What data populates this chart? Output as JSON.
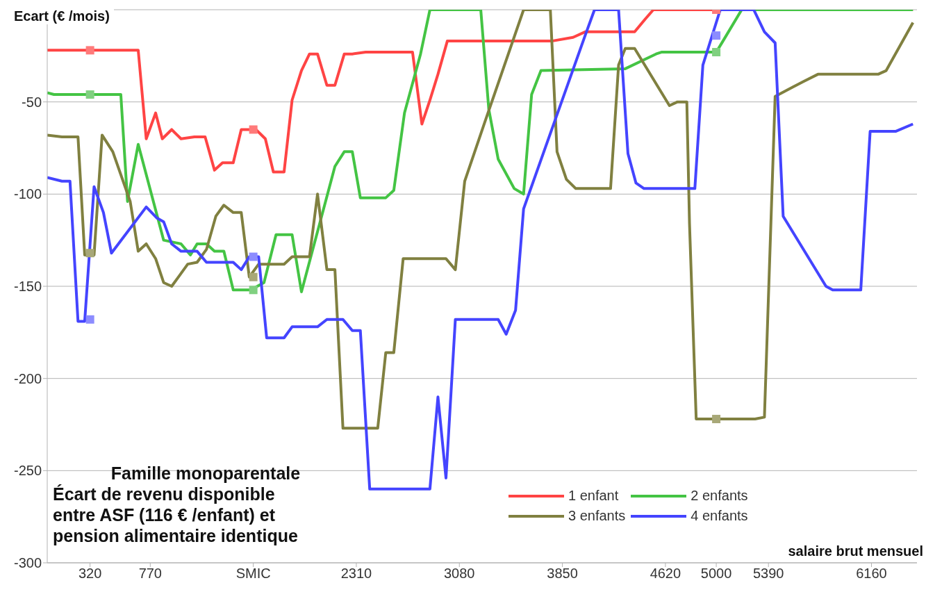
{
  "chart_data": {
    "type": "line",
    "title": "Famille monoparentale\nÉcart de revenu disponible\nentre ASF (116 € /enfant) et\npension alimentaire identique",
    "xlabel": "salaire brut mensuel",
    "ylabel": "Ecart (€ /mois)",
    "xlim": [
      0,
      6500
    ],
    "xticks": [
      320,
      770,
      {
        "value": 1540,
        "label": "SMIC"
      },
      2310,
      3080,
      3850,
      4620,
      5000,
      5390,
      6160
    ],
    "ylim": [
      -300,
      0
    ],
    "yticks": [
      -300,
      -250,
      -200,
      -150,
      -100,
      -50,
      {
        "value": 0,
        "label": null
      }
    ],
    "grid": "y",
    "legend": "bottom right",
    "marker": "none",
    "line_style": "solid",
    "series": [
      {
        "name": "1 enfant",
        "color": "#ff4444",
        "x": [
          0,
          680,
          740,
          810,
          860,
          930,
          1000,
          1100,
          1180,
          1250,
          1310,
          1390,
          1450,
          1560,
          1630,
          1690,
          1770,
          1830,
          1900,
          1960,
          2020,
          2090,
          2150,
          2220,
          2280,
          2380,
          2730,
          2800,
          2860,
          2920,
          2990,
          3770,
          3930,
          4020,
          4390,
          4470,
          4530,
          6470
        ],
        "values": [
          -22,
          -22,
          -70,
          -56,
          -70,
          -65,
          -70,
          -69,
          -69,
          -87,
          -83,
          -83,
          -65,
          -65,
          -70,
          -88,
          -88,
          -49,
          -33,
          -24,
          -24,
          -41,
          -41,
          -24,
          -24,
          -23,
          -23,
          -62,
          -49,
          -35,
          -17,
          -17,
          -15,
          -12,
          -12,
          -5,
          0,
          0
        ]
      },
      {
        "name": "2 enfants",
        "color": "#44c444",
        "x": [
          0,
          50,
          550,
          600,
          680,
          870,
          1000,
          1070,
          1120,
          1190,
          1250,
          1320,
          1390,
          1520,
          1620,
          1710,
          1830,
          1900,
          2150,
          2220,
          2280,
          2340,
          2530,
          2590,
          2670,
          2790,
          2860,
          3240,
          3300,
          3370,
          3490,
          3560,
          3620,
          3690,
          4320,
          4550,
          4590,
          5000,
          5050,
          5190,
          6470
        ],
        "values": [
          -45,
          -46,
          -46,
          -104,
          -73,
          -125,
          -127,
          -133,
          -127,
          -127,
          -131,
          -131,
          -152,
          -152,
          -148,
          -122,
          -122,
          -153,
          -85,
          -77,
          -77,
          -102,
          -102,
          -98,
          -56,
          -24,
          0,
          0,
          -54,
          -81,
          -97,
          -100,
          -46,
          -33,
          -32,
          -24,
          -23,
          -23,
          -17,
          0,
          0
        ]
      },
      {
        "name": "3 enfants",
        "color": "#808040",
        "x": [
          0,
          110,
          230,
          280,
          350,
          410,
          490,
          620,
          680,
          740,
          810,
          870,
          930,
          1050,
          1120,
          1190,
          1260,
          1320,
          1390,
          1450,
          1510,
          1580,
          1770,
          1830,
          1960,
          2020,
          2090,
          2150,
          2210,
          2470,
          2530,
          2590,
          2660,
          2980,
          3050,
          3120,
          3270,
          3560,
          3760,
          3810,
          3880,
          3950,
          4210,
          4270,
          4320,
          4390,
          4650,
          4710,
          4780,
          4800,
          4850,
          5290,
          5360,
          5440,
          5570,
          5650,
          5760,
          6210,
          6270,
          6470
        ],
        "values": [
          -68,
          -69,
          -69,
          -133,
          -133,
          -68,
          -77,
          -104,
          -131,
          -127,
          -135,
          -148,
          -150,
          -138,
          -137,
          -130,
          -112,
          -106,
          -110,
          -110,
          -145,
          -138,
          -138,
          -134,
          -134,
          -100,
          -141,
          -141,
          -227,
          -227,
          -186,
          -186,
          -135,
          -135,
          -141,
          -93,
          -61,
          0,
          0,
          -77,
          -92,
          -97,
          -97,
          -30,
          -21,
          -21,
          -52,
          -50,
          -50,
          -116,
          -222,
          -222,
          -221,
          -47,
          -42,
          -39,
          -35,
          -35,
          -33,
          -7
        ]
      },
      {
        "name": "4 enfants",
        "color": "#4444ff",
        "x": [
          0,
          110,
          170,
          230,
          280,
          350,
          420,
          480,
          740,
          820,
          870,
          930,
          1000,
          1120,
          1190,
          1390,
          1450,
          1510,
          1580,
          1640,
          1770,
          1830,
          2020,
          2090,
          2210,
          2280,
          2340,
          2410,
          2860,
          2920,
          2980,
          3050,
          3370,
          3430,
          3500,
          3560,
          4020,
          4090,
          4270,
          4340,
          4400,
          4460,
          4840,
          4900,
          5030,
          5280,
          5360,
          5440,
          5500,
          5820,
          5870,
          6080,
          6150,
          6340,
          6470
        ],
        "values": [
          -91,
          -93,
          -93,
          -169,
          -169,
          -96,
          -110,
          -132,
          -107,
          -113,
          -115,
          -127,
          -131,
          -131,
          -137,
          -137,
          -141,
          -134,
          -134,
          -178,
          -178,
          -172,
          -172,
          -168,
          -168,
          -174,
          -174,
          -260,
          -260,
          -210,
          -254,
          -168,
          -168,
          -176,
          -163,
          -108,
          -14,
          0,
          0,
          -78,
          -94,
          -97,
          -97,
          -30,
          0,
          0,
          -12,
          -18,
          -112,
          -150,
          -152,
          -152,
          -66,
          -66,
          -62
        ]
      },
      {
        "type": "scatter",
        "marker": "square",
        "color": "#ff7a7a",
        "x": [
          320,
          1540,
          5000
        ],
        "values": [
          -22,
          -65,
          0
        ]
      },
      {
        "type": "scatter",
        "marker": "square",
        "color": "#80d080",
        "x": [
          320,
          1540,
          5000
        ],
        "values": [
          -46,
          -152,
          -23
        ]
      },
      {
        "type": "scatter",
        "marker": "square",
        "color": "#a8a878",
        "x": [
          320,
          1540,
          5000
        ],
        "values": [
          -132,
          -145,
          -222
        ]
      },
      {
        "type": "scatter",
        "marker": "square",
        "color": "#8c8cff",
        "x": [
          320,
          1540,
          5000
        ],
        "values": [
          -168,
          -134,
          -14
        ]
      }
    ]
  }
}
